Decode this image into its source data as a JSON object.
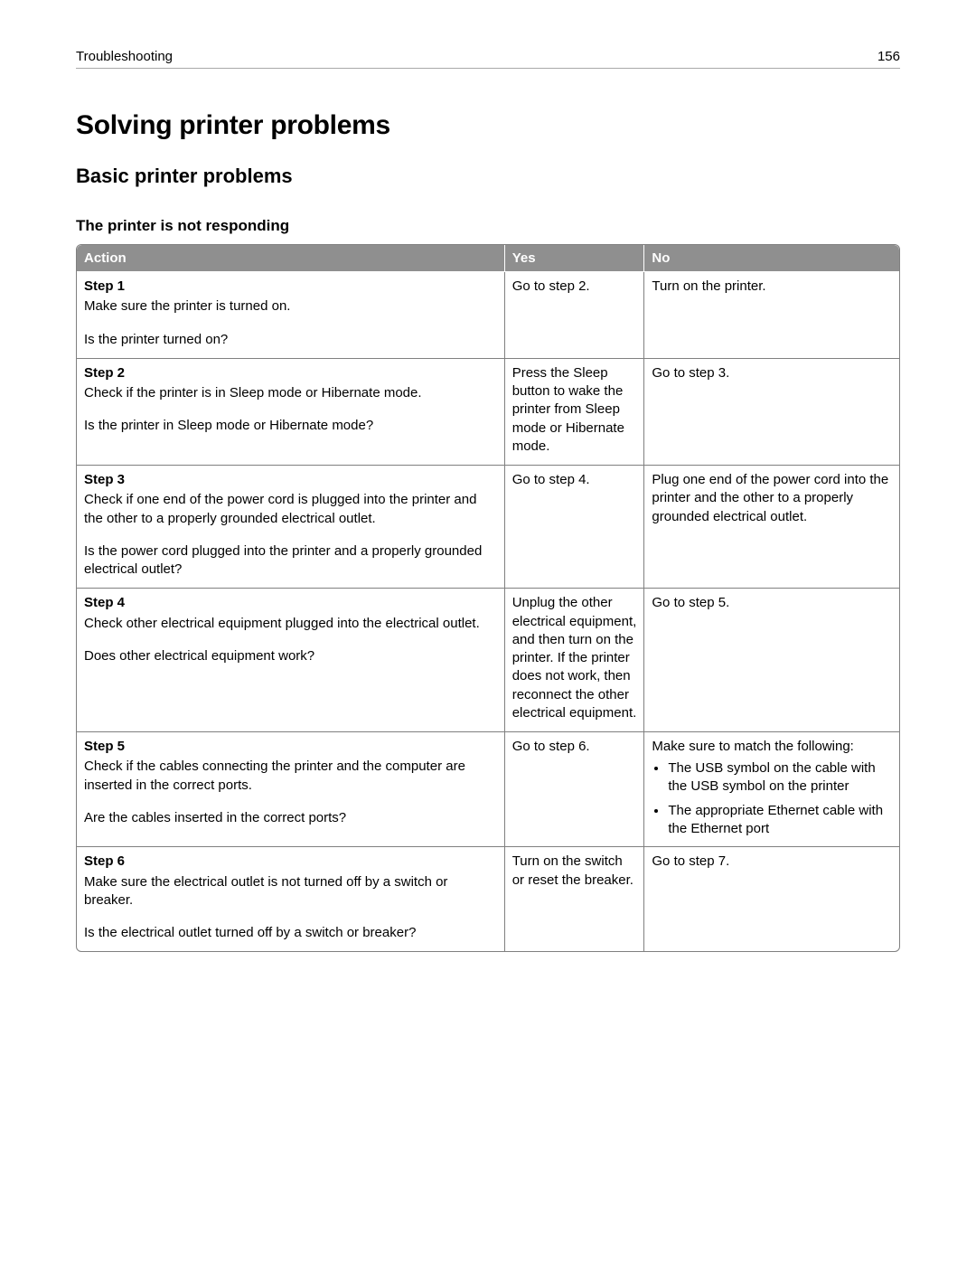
{
  "header": {
    "section": "Troubleshooting",
    "page_number": "156"
  },
  "titles": {
    "h1": "Solving printer problems",
    "h2": "Basic printer problems",
    "h3": "The printer is not responding"
  },
  "table": {
    "columns": {
      "action": "Action",
      "yes": "Yes",
      "no": "No"
    },
    "col_widths_pct": {
      "action": 52,
      "yes": 17,
      "no": 31
    },
    "header_bg": "#8f8f8f",
    "header_fg": "#ffffff",
    "border_color": "#808080",
    "rows": {
      "r1": {
        "step": "Step 1",
        "body": "Make sure the printer is turned on.",
        "question": "Is the printer turned on?",
        "yes": "Go to step 2.",
        "no": "Turn on the printer."
      },
      "r2": {
        "step": "Step 2",
        "body": "Check if the printer is in Sleep mode or Hibernate mode.",
        "question": "Is the printer in Sleep mode or Hibernate mode?",
        "yes": "Press the Sleep button to wake the printer from Sleep mode or Hibernate mode.",
        "no": "Go to step 3."
      },
      "r3": {
        "step": "Step 3",
        "body": "Check if one end of the power cord is plugged into the printer and the other to a properly grounded electrical outlet.",
        "question": "Is the power cord plugged into the printer and a properly grounded electrical outlet?",
        "yes": "Go to step 4.",
        "no": "Plug one end of the power cord into the printer and the other to a properly grounded electrical outlet."
      },
      "r4": {
        "step": "Step 4",
        "body": "Check other electrical equipment plugged into the electrical outlet.",
        "question": "Does other electrical equipment work?",
        "yes": "Unplug the other electrical equipment, and then turn on the printer. If the printer does not work, then reconnect the other electrical equipment.",
        "no": "Go to step 5."
      },
      "r5": {
        "step": "Step 5",
        "body": "Check if the cables connecting the printer and the computer are inserted in the correct ports.",
        "question": "Are the cables inserted in the correct ports?",
        "yes": "Go to step 6.",
        "no_lead": "Make sure to match the following:",
        "no_bullets": {
          "b1": "The USB symbol on the cable with the USB symbol on the printer",
          "b2": "The appropriate Ethernet cable with the Ethernet port"
        }
      },
      "r6": {
        "step": "Step 6",
        "body": "Make sure the electrical outlet is not turned off by a switch or breaker.",
        "question": "Is the electrical outlet turned off by a switch or breaker?",
        "yes": "Turn on the switch or reset the breaker.",
        "no": "Go to step 7."
      }
    }
  }
}
